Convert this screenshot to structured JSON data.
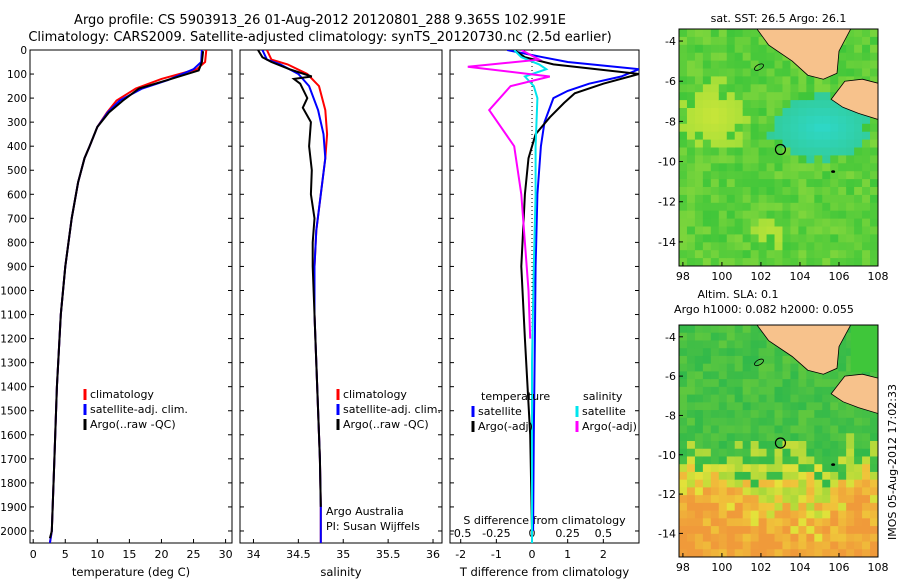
{
  "titles": {
    "line1": "Argo profile: CS 5903913_26 01-Aug-2012 20120801_288 9.365S 102.991E",
    "line2": "Climatology: CARS2009. Satellite-adjusted climatology: synTS_20120730.nc (2.5d earlier)"
  },
  "side_label": "IMOS 05-Aug-2012 17:02:33",
  "colors": {
    "climatology": "#ff0000",
    "satellite": "#0000ff",
    "argo": "#000000",
    "sal_satellite": "#00e5ee",
    "sal_argo": "#ff00ff",
    "land": "#f7c28c"
  },
  "chart_data": [
    {
      "type": "line",
      "panel": "temperature",
      "xlabel": "temperature (deg C)",
      "ylabel": "",
      "xlim": [
        -0.5,
        31
      ],
      "ylim": [
        2050,
        0
      ],
      "xticks": [
        0,
        5,
        10,
        15,
        20,
        25,
        30
      ],
      "yticks": [
        0,
        100,
        200,
        300,
        400,
        500,
        600,
        700,
        800,
        900,
        1000,
        1100,
        1200,
        1300,
        1400,
        1500,
        1600,
        1700,
        1800,
        1900,
        2000
      ],
      "legend": [
        "climatology",
        "satellite-adj. clim.",
        "Argo(..raw -QC)"
      ],
      "series": [
        {
          "name": "climatology",
          "color": "#ff0000",
          "x": [
            27.0,
            26.8,
            25.5,
            20.0,
            16.0,
            13.0,
            11.5,
            10.0,
            8.8,
            8.0,
            7.0,
            6.0,
            5.0,
            4.3,
            3.7,
            3.3,
            2.9,
            2.6
          ],
          "y": [
            0,
            50,
            80,
            120,
            160,
            210,
            260,
            320,
            400,
            450,
            550,
            700,
            900,
            1100,
            1400,
            1700,
            2000,
            2050
          ]
        },
        {
          "name": "satellite-adj. clim.",
          "color": "#0000ff",
          "x": [
            26.3,
            26.2,
            25.0,
            21.0,
            17.0,
            13.5,
            11.6,
            10.0,
            8.8,
            8.0,
            7.0,
            6.0,
            5.0,
            4.3,
            3.7,
            3.3,
            2.9,
            2.6
          ],
          "y": [
            0,
            50,
            80,
            125,
            160,
            210,
            260,
            320,
            400,
            450,
            550,
            700,
            900,
            1100,
            1400,
            1700,
            2000,
            2050
          ]
        },
        {
          "name": "Argo(..raw -QC)",
          "color": "#000000",
          "x": [
            26.5,
            26.3,
            25.8,
            21.5,
            16.5,
            14.0,
            11.8,
            10.0,
            8.8,
            8.0,
            7.0,
            6.0,
            5.0,
            4.3,
            3.7,
            3.3,
            2.9,
            2.6
          ],
          "y": [
            5,
            50,
            85,
            120,
            160,
            210,
            260,
            320,
            400,
            450,
            550,
            700,
            900,
            1100,
            1400,
            1700,
            2000,
            2030
          ]
        }
      ]
    },
    {
      "type": "line",
      "panel": "salinity",
      "xlabel": "salinity",
      "xlim": [
        33.85,
        36.1
      ],
      "ylim": [
        2050,
        0
      ],
      "xticks": [
        34,
        34.5,
        35,
        35.5,
        36
      ],
      "legend": [
        "climatology",
        "satellite-adj. clim.",
        "Argo(..raw -QC)"
      ],
      "annotations": [
        "Argo Australia",
        "PI: Susan Wijffels"
      ],
      "series": [
        {
          "name": "climatology",
          "color": "#ff0000",
          "x": [
            34.15,
            34.2,
            34.38,
            34.6,
            34.73,
            34.8,
            34.82,
            34.8,
            34.75,
            34.7,
            34.68,
            34.68,
            34.7,
            34.72,
            34.74,
            34.75,
            34.75
          ],
          "y": [
            0,
            40,
            60,
            100,
            150,
            250,
            350,
            450,
            600,
            750,
            900,
            1100,
            1300,
            1500,
            1700,
            1900,
            2050
          ]
        },
        {
          "name": "satellite-adj. clim.",
          "color": "#0000ff",
          "x": [
            34.1,
            34.15,
            34.3,
            34.5,
            34.62,
            34.72,
            34.78,
            34.8,
            34.75,
            34.7,
            34.68,
            34.68,
            34.7,
            34.72,
            34.74,
            34.75,
            34.75
          ],
          "y": [
            0,
            40,
            60,
            100,
            150,
            250,
            350,
            450,
            600,
            750,
            900,
            1100,
            1300,
            1500,
            1700,
            1900,
            2050
          ]
        },
        {
          "name": "Argo(..raw -QC)",
          "color": "#000000",
          "x": [
            34.05,
            34.1,
            34.2,
            34.4,
            34.65,
            34.45,
            34.52,
            34.6,
            34.55,
            34.64,
            34.62,
            34.65,
            34.64,
            34.68,
            34.66,
            34.66,
            34.68,
            34.7,
            34.72,
            34.74,
            34.75
          ],
          "y": [
            0,
            30,
            50,
            80,
            110,
            120,
            140,
            200,
            240,
            300,
            400,
            500,
            600,
            700,
            800,
            900,
            1100,
            1300,
            1500,
            1700,
            1900
          ]
        }
      ]
    },
    {
      "type": "line",
      "panel": "differences",
      "xlabel": "T difference from climatology",
      "xlabel_top": "S difference from climatology",
      "xlim": [
        -2.3,
        3.0
      ],
      "ylim": [
        2050,
        0
      ],
      "xticks": [
        -2,
        -1,
        0,
        1,
        2
      ],
      "xticks_top": [
        -0.5,
        -0.25,
        0,
        0.25,
        0.5
      ],
      "legend_headers": [
        "temperature",
        "salinity"
      ],
      "legend": [
        "satellite",
        "Argo(-adj)",
        "satellite",
        "Argo(-adj)"
      ],
      "series": [
        {
          "name": "temperature satellite",
          "color": "#0000ff",
          "x": [
            -0.7,
            0.3,
            1.0,
            3.0,
            2.5,
            1.6,
            1.0,
            0.6,
            0.35,
            0.25,
            0.15,
            0.1,
            0.08,
            0.05,
            0.03
          ],
          "y": [
            0,
            30,
            50,
            80,
            110,
            140,
            170,
            200,
            300,
            400,
            600,
            900,
            1200,
            1600,
            2000
          ]
        },
        {
          "name": "temperature Argo(-adj)",
          "color": "#000000",
          "x": [
            -0.5,
            -0.2,
            0.6,
            3.0,
            2.0,
            1.2,
            0.9,
            0.5,
            0.1,
            -0.1,
            -0.2,
            -0.3,
            -0.2,
            -0.05,
            0.0
          ],
          "y": [
            0,
            30,
            60,
            100,
            140,
            180,
            220,
            280,
            350,
            450,
            600,
            900,
            1200,
            1600,
            2000
          ]
        },
        {
          "name": "salinity satellite",
          "color": "#00e5ee",
          "x": [
            -0.5,
            -0.3,
            0.2,
            0.4,
            -0.2,
            0.05,
            0.15,
            0.1,
            0.1,
            0.05,
            0.0,
            0.0,
            0.0
          ],
          "y": [
            0,
            30,
            60,
            80,
            110,
            150,
            200,
            400,
            600,
            900,
            1300,
            1700,
            2050
          ]
        },
        {
          "name": "salinity Argo(-adj)",
          "color": "#ff00ff",
          "x": [
            -0.3,
            0.2,
            -1.8,
            0.5,
            -0.6,
            -1.2,
            -0.5,
            -0.3,
            -0.2,
            -0.1,
            -0.05
          ],
          "y": [
            0,
            40,
            70,
            110,
            150,
            250,
            400,
            600,
            800,
            1000,
            1200
          ]
        }
      ]
    },
    {
      "type": "heatmap",
      "panel": "sst-map",
      "title": "sat. SST: 26.5 Argo: 26.1",
      "xlim": [
        97.8,
        108
      ],
      "ylim": [
        -15.2,
        -3.4
      ],
      "xticks": [
        98,
        100,
        102,
        104,
        106,
        108
      ],
      "yticks": [
        -4,
        -6,
        -8,
        -10,
        -12,
        -14
      ],
      "marker": {
        "lon": 103.0,
        "lat": -9.4
      }
    },
    {
      "type": "heatmap",
      "panel": "sla-map",
      "title_lines": [
        "Altim. SLA: 0.1",
        "Argo h1000: 0.082 h2000: 0.055"
      ],
      "xlim": [
        97.8,
        108
      ],
      "ylim": [
        -15.2,
        -3.4
      ],
      "xticks": [
        98,
        100,
        102,
        104,
        106,
        108
      ],
      "yticks": [
        -4,
        -6,
        -8,
        -10,
        -12,
        -14
      ],
      "marker": {
        "lon": 103.0,
        "lat": -9.4
      }
    }
  ]
}
